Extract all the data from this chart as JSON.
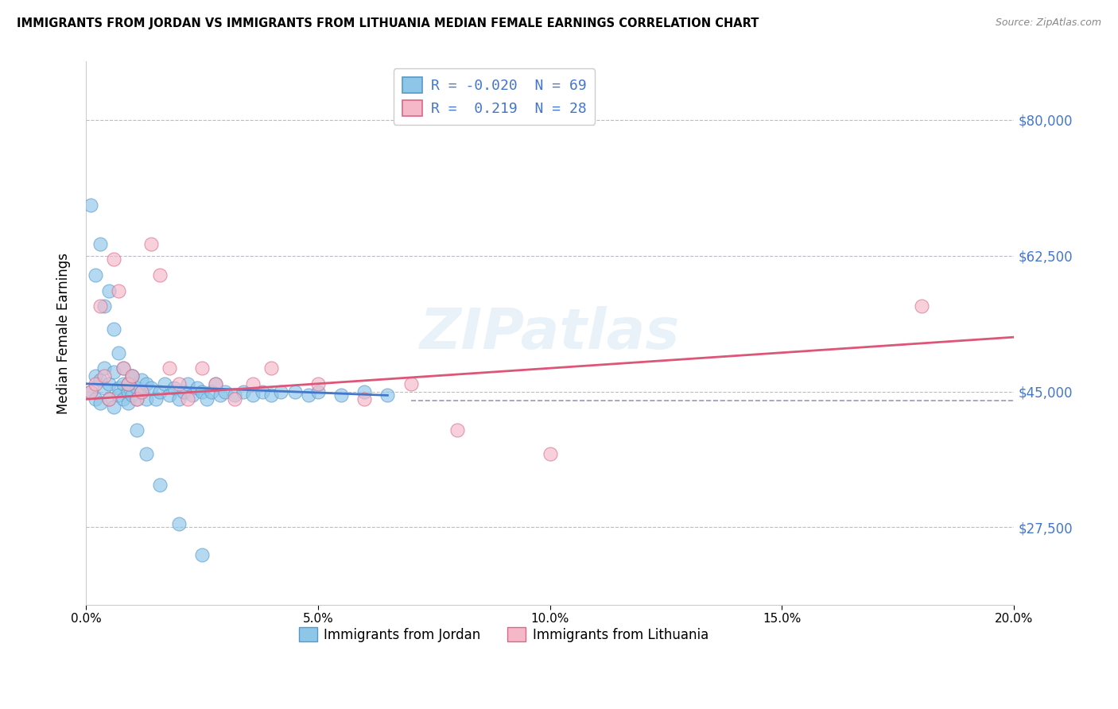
{
  "title": "IMMIGRANTS FROM JORDAN VS IMMIGRANTS FROM LITHUANIA MEDIAN FEMALE EARNINGS CORRELATION CHART",
  "source": "Source: ZipAtlas.com",
  "ylabel": "Median Female Earnings",
  "xlim": [
    0.0,
    0.2
  ],
  "ylim": [
    17500,
    87500
  ],
  "yticks": [
    27500,
    45000,
    62500,
    80000
  ],
  "ytick_labels": [
    "$27,500",
    "$45,000",
    "$62,500",
    "$80,000"
  ],
  "xticks": [
    0.0,
    0.05,
    0.1,
    0.15,
    0.2
  ],
  "xtick_labels": [
    "0.0%",
    "5.0%",
    "10.0%",
    "15.0%",
    "20.0%"
  ],
  "jordan_color": "#8ec6e8",
  "jordan_edge": "#5599cc",
  "lithuania_color": "#f5b8c8",
  "lithuania_edge": "#dd6688",
  "jordan_R": -0.02,
  "jordan_N": 69,
  "lithuania_R": 0.219,
  "lithuania_N": 28,
  "background_color": "#ffffff",
  "grid_color": "#bbbbcc",
  "trend_color_jordan": "#4477cc",
  "trend_color_lithuania": "#dd5577",
  "dashed_line_color": "#9999bb",
  "watermark": "ZIPatlas",
  "legend_jordan": "Immigrants from Jordan",
  "legend_lithuania": "Immigrants from Lithuania",
  "tick_label_color": "#4477cc",
  "jordan_x": [
    0.001,
    0.002,
    0.002,
    0.003,
    0.003,
    0.004,
    0.004,
    0.005,
    0.005,
    0.006,
    0.006,
    0.007,
    0.007,
    0.008,
    0.008,
    0.009,
    0.009,
    0.01,
    0.01,
    0.011,
    0.011,
    0.012,
    0.012,
    0.013,
    0.013,
    0.014,
    0.015,
    0.016,
    0.017,
    0.018,
    0.019,
    0.02,
    0.021,
    0.022,
    0.023,
    0.024,
    0.025,
    0.026,
    0.027,
    0.028,
    0.029,
    0.03,
    0.032,
    0.034,
    0.036,
    0.038,
    0.04,
    0.042,
    0.045,
    0.048,
    0.05,
    0.055,
    0.06,
    0.065,
    0.001,
    0.002,
    0.003,
    0.004,
    0.005,
    0.006,
    0.007,
    0.008,
    0.009,
    0.01,
    0.011,
    0.013,
    0.016,
    0.02,
    0.025
  ],
  "jordan_y": [
    45000,
    47000,
    44000,
    46500,
    43500,
    48000,
    45500,
    44000,
    46000,
    47500,
    43000,
    45500,
    44500,
    46000,
    44000,
    45000,
    43500,
    47000,
    44500,
    45500,
    44000,
    46500,
    45000,
    44000,
    46000,
    45500,
    44000,
    45000,
    46000,
    44500,
    45500,
    44000,
    45000,
    46000,
    44500,
    45500,
    45000,
    44000,
    45000,
    46000,
    44500,
    45000,
    44500,
    45000,
    44500,
    45000,
    44500,
    45000,
    45000,
    44500,
    45000,
    44500,
    45000,
    44500,
    69000,
    60000,
    64000,
    56000,
    58000,
    53000,
    50000,
    48000,
    46000,
    47000,
    40000,
    37000,
    33000,
    28000,
    24000
  ],
  "lithuania_x": [
    0.001,
    0.002,
    0.003,
    0.004,
    0.005,
    0.006,
    0.007,
    0.008,
    0.009,
    0.01,
    0.011,
    0.012,
    0.014,
    0.016,
    0.018,
    0.02,
    0.022,
    0.025,
    0.028,
    0.032,
    0.036,
    0.04,
    0.05,
    0.06,
    0.07,
    0.08,
    0.1,
    0.18
  ],
  "lithuania_y": [
    45000,
    46000,
    56000,
    47000,
    44000,
    62000,
    58000,
    48000,
    46000,
    47000,
    44000,
    45000,
    64000,
    60000,
    48000,
    46000,
    44000,
    48000,
    46000,
    44000,
    46000,
    48000,
    46000,
    44000,
    46000,
    40000,
    37000,
    56000
  ],
  "jordan_trend_x": [
    0.0,
    0.065
  ],
  "jordan_trend_y": [
    46000,
    44500
  ],
  "lithuania_trend_x": [
    0.0,
    0.2
  ],
  "lithuania_trend_y": [
    44000,
    52000
  ]
}
